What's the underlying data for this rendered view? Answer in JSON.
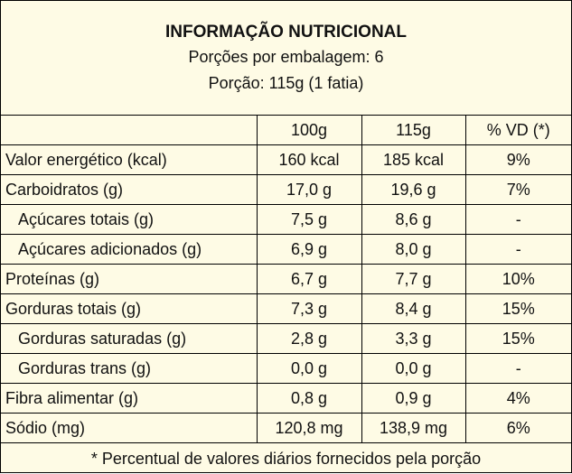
{
  "header": {
    "title": "INFORMAÇÃO NUTRICIONAL",
    "servings_per_package": "Porções por embalagem: 6",
    "serving_size": "Porção: 115g (1 fatia)"
  },
  "columns": [
    "",
    "100g",
    "115g",
    "% VD (*)"
  ],
  "rows": [
    {
      "name": "Valor energético (kcal)",
      "sub": false,
      "per100": "160 kcal",
      "perServing": "185 kcal",
      "vd": "9%"
    },
    {
      "name": "Carboidratos (g)",
      "sub": false,
      "per100": "17,0 g",
      "perServing": "19,6 g",
      "vd": "7%"
    },
    {
      "name": "Açúcares totais (g)",
      "sub": true,
      "per100": "7,5 g",
      "perServing": "8,6 g",
      "vd": "-"
    },
    {
      "name": "Açúcares adicionados (g)",
      "sub": true,
      "per100": "6,9 g",
      "perServing": "8,0 g",
      "vd": "-"
    },
    {
      "name": "Proteínas (g)",
      "sub": false,
      "per100": "6,7 g",
      "perServing": "7,7 g",
      "vd": "10%"
    },
    {
      "name": "Gorduras totais (g)",
      "sub": false,
      "per100": "7,3 g",
      "perServing": "8,4 g",
      "vd": "15%"
    },
    {
      "name": "Gorduras saturadas (g)",
      "sub": true,
      "per100": "2,8 g",
      "perServing": "3,3 g",
      "vd": "15%"
    },
    {
      "name": "Gorduras trans (g)",
      "sub": true,
      "per100": "0,0 g",
      "perServing": "0,0 g",
      "vd": "-"
    },
    {
      "name": "Fibra alimentar (g)",
      "sub": false,
      "per100": "0,8 g",
      "perServing": "0,9 g",
      "vd": "4%"
    },
    {
      "name": "Sódio (mg)",
      "sub": false,
      "per100": "120,8 mg",
      "perServing": "138,9 mg",
      "vd": "6%"
    }
  ],
  "footer": "* Percentual de valores diários fornecidos pela porção",
  "colors": {
    "background": "#fefbe5",
    "border": "#000000",
    "text": "#111111"
  }
}
